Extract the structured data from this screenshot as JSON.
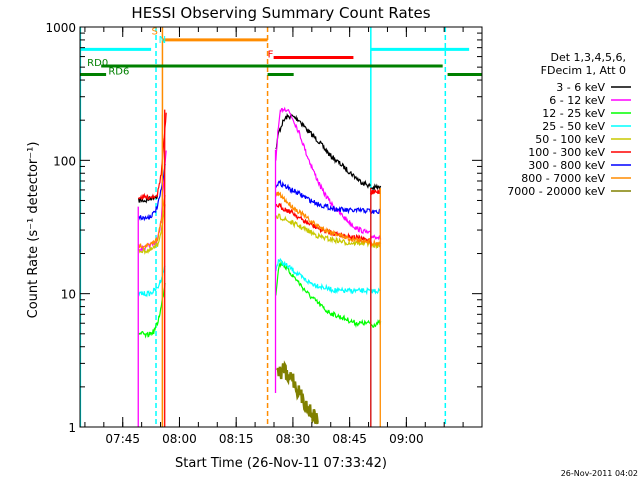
{
  "chart_data": {
    "type": "line",
    "title": "HESSI Observing Summary Count Rates",
    "xlabel": "Start Time (26-Nov-11 07:33:42)",
    "ylabel": "Count Rate (s⁻¹ detector⁻¹)",
    "x_unit": "minutes since 07:33:42 on 26-Nov-2011",
    "xlim": [
      0,
      106.3
    ],
    "ylim": [
      1,
      1000
    ],
    "yscale": "log",
    "grid": false,
    "legend_position": "right",
    "x_ticks": [
      {
        "x": 11.3,
        "label": "07:45"
      },
      {
        "x": 26.3,
        "label": "08:00"
      },
      {
        "x": 41.3,
        "label": "08:15"
      },
      {
        "x": 56.3,
        "label": "08:30"
      },
      {
        "x": 71.3,
        "label": "08:45"
      },
      {
        "x": 86.3,
        "label": "09:00"
      }
    ],
    "y_ticks": [
      {
        "y": 1,
        "label": "1"
      },
      {
        "y": 10,
        "label": "10"
      },
      {
        "y": 100,
        "label": "100"
      },
      {
        "y": 1000,
        "label": "1000"
      }
    ],
    "legend_header": [
      "Det 1,3,4,5,6,",
      "FDecim 1, Att 0"
    ],
    "series": [
      {
        "name": "3 - 6 keV",
        "color": "#000000",
        "segments": [
          {
            "x": [
              15.5,
              16.5,
              17.5,
              18.5,
              19.5,
              20.5
            ],
            "y": [
              50,
              50,
              50,
              52,
              53,
              54
            ]
          },
          {
            "x": [
              51.8,
              52.5,
              53.5,
              54.5,
              56,
              58,
              60,
              63,
              66,
              70,
              74,
              76.8
            ],
            "y": [
              120,
              160,
              190,
              210,
              215,
              200,
              170,
              140,
              110,
              88,
              70,
              64
            ]
          },
          {
            "x": [
              76.8,
              77.5,
              78.5,
              79.5
            ],
            "y": [
              62,
              62,
              63,
              62
            ]
          }
        ]
      },
      {
        "name": "6 - 12 keV",
        "color": "#ff00ff",
        "segments": [
          {
            "x": [
              15.5,
              16.5,
              17.5,
              18.5,
              19.5,
              20.5,
              21.5,
              22,
              22.8
            ],
            "y": [
              22,
              22,
              22,
              23,
              24,
              25,
              36,
              60,
              120
            ]
          },
          {
            "x": [
              51.8,
              52.3,
              53,
              53.8,
              55,
              56.5,
              58,
              60,
              62,
              64,
              67,
              70,
              73,
              76.8
            ],
            "y": [
              100,
              160,
              230,
              245,
              240,
              200,
              160,
              110,
              80,
              60,
              45,
              37,
              31,
              28
            ]
          },
          {
            "x": [
              76.8,
              77.5,
              78.5,
              79.5
            ],
            "y": [
              27,
              27,
              27,
              26
            ]
          }
        ]
      },
      {
        "name": "12 - 25 keV",
        "color": "#00ff00",
        "segments": [
          {
            "x": [
              15.5,
              16.5,
              17.5,
              18.5,
              19.5,
              20.5,
              21.5,
              22.5
            ],
            "y": [
              5,
              5,
              4.8,
              5,
              5.2,
              6,
              8,
              12
            ]
          },
          {
            "x": [
              51.8,
              52.5,
              53.5,
              55,
              57,
              59,
              61,
              63,
              65,
              67,
              70,
              73,
              76.8
            ],
            "y": [
              10,
              16,
              17,
              15,
              13,
              11,
              9.5,
              8.5,
              7.5,
              7,
              6.5,
              6,
              6
            ]
          },
          {
            "x": [
              76.8,
              77.5,
              78.5,
              79.5
            ],
            "y": [
              5.8,
              5.8,
              6,
              6
            ]
          }
        ]
      },
      {
        "name": "25 - 50 keV",
        "color": "#00ffff",
        "segments": [
          {
            "x": [
              15.5,
              16.5,
              17.5,
              18.5,
              19.5,
              20.5,
              21.5,
              22.5
            ],
            "y": [
              10,
              10,
              10,
              10,
              10.5,
              11,
              13,
              16
            ]
          },
          {
            "x": [
              51.8,
              52.5,
              53.5,
              55,
              57,
              59,
              61,
              63,
              65,
              68,
              71,
              74,
              76.8
            ],
            "y": [
              15,
              18,
              17,
              16,
              14.5,
              13,
              12,
              11.5,
              11,
              10.5,
              10.5,
              10.5,
              10.5
            ]
          },
          {
            "x": [
              76.8,
              77.5,
              78.5,
              79.5
            ],
            "y": [
              10.5,
              10.5,
              10.5,
              10.5
            ]
          }
        ]
      },
      {
        "name": "50 - 100 keV",
        "color": "#c8c800",
        "segments": [
          {
            "x": [
              15.5,
              16.5,
              17.5,
              18.5,
              19.5,
              20.5,
              21.5,
              22.5
            ],
            "y": [
              21,
              21,
              21,
              21,
              22,
              23,
              30,
              45
            ]
          },
          {
            "x": [
              51.8,
              52.5,
              53.5,
              55,
              57,
              59,
              61,
              63,
              65,
              68,
              71,
              74,
              76.8
            ],
            "y": [
              36,
              38,
              37,
              35,
              33,
              31,
              29,
              27,
              26,
              25,
              24,
              24,
              24
            ]
          },
          {
            "x": [
              76.8,
              77.5,
              78.5,
              79.5
            ],
            "y": [
              23,
              23,
              23,
              23
            ]
          }
        ]
      },
      {
        "name": "100 - 300 keV",
        "color": "#ff0000",
        "segments": [
          {
            "x": [
              15.5,
              16.5,
              17.5,
              18.5,
              19.5,
              20.5,
              21.5,
              22.3,
              22.8
            ],
            "y": [
              53,
              53,
              53,
              53,
              54,
              56,
              80,
              150,
              220
            ]
          },
          {
            "x": [
              51.8,
              52.5,
              53.5,
              55,
              56.5,
              58,
              60,
              62,
              64,
              66,
              68,
              71,
              74,
              76.8
            ],
            "y": [
              45,
              46,
              44,
              42,
              40,
              37,
              34,
              32,
              30,
              29,
              28,
              27,
              26,
              25
            ]
          },
          {
            "x": [
              76.8,
              77.5,
              78.5,
              79.5
            ],
            "y": [
              58,
              58,
              58,
              58
            ]
          }
        ]
      },
      {
        "name": "300 - 800 keV",
        "color": "#0000ff",
        "segments": [
          {
            "x": [
              15.5,
              16.5,
              17.5,
              18.5,
              19.5,
              20.5,
              21.5,
              22.5
            ],
            "y": [
              38,
              37,
              37,
              38,
              40,
              45,
              60,
              90
            ]
          },
          {
            "x": [
              51.8,
              52.5,
              53.5,
              55,
              57,
              59,
              61,
              63,
              65,
              68,
              71,
              74,
              76.8
            ],
            "y": [
              65,
              68,
              66,
              62,
              58,
              54,
              50,
              47,
              45,
              43,
              42,
              42,
              42
            ]
          },
          {
            "x": [
              76.8,
              77.5,
              78.5,
              79.5
            ],
            "y": [
              41,
              41,
              41,
              41
            ]
          }
        ]
      },
      {
        "name": "800 - 7000 keV",
        "color": "#ff8c00",
        "segments": [
          {
            "x": [
              15.5,
              16.5,
              17.5,
              18.5,
              19.5,
              20.5,
              21.5,
              22.5
            ],
            "y": [
              23,
              23,
              23,
              23,
              24,
              26,
              35,
              55
            ]
          },
          {
            "x": [
              51.8,
              52.5,
              53.5,
              55,
              57,
              59,
              61,
              63,
              65,
              68,
              71,
              74,
              76.8
            ],
            "y": [
              55,
              56,
              53,
              48,
              43,
              39,
              35,
              32,
              30,
              28,
              26,
              25,
              25
            ]
          },
          {
            "x": [
              76.8,
              77.5,
              78.5,
              79.5
            ],
            "y": [
              24,
              24,
              24,
              24
            ]
          }
        ]
      },
      {
        "name": "7000 - 20000 keV",
        "color": "#808000",
        "segments": [
          {
            "x": [
              52.2,
              53,
              54,
              55,
              56,
              57,
              58,
              59,
              60,
              61,
              62,
              63
            ],
            "y": [
              2.8,
              2.5,
              2.8,
              2.2,
              2.5,
              2.0,
              1.8,
              1.6,
              1.4,
              1.3,
              1.2,
              1.1
            ]
          }
        ]
      }
    ],
    "spikes": [
      {
        "x": 15.4,
        "y0": 1,
        "y1": 45,
        "color": "#ff00ff"
      },
      {
        "x": 21.8,
        "y0": 1,
        "y1": 220,
        "color": "#ff8c00"
      },
      {
        "x": 22.4,
        "y0": 1,
        "y1": 240,
        "color": "#ff0000"
      },
      {
        "x": 51.7,
        "y0": 1.8,
        "y1": 120,
        "color": "#ff00ff"
      },
      {
        "x": 76.9,
        "y0": 1,
        "y1": 62,
        "color": "#ff0000"
      },
      {
        "x": 79.4,
        "y0": 1,
        "y1": 62,
        "color": "#ff8c00"
      }
    ],
    "vlines": [
      {
        "x": 0.1,
        "color": "#00ffff",
        "dashed": false
      },
      {
        "x": 20.1,
        "color": "#00ffff",
        "dashed": true
      },
      {
        "x": 21.8,
        "color": "#ff8c00",
        "dashed": false
      },
      {
        "x": 49.6,
        "color": "#ff8c00",
        "dashed": true
      },
      {
        "x": 76.9,
        "color": "#00ffff",
        "dashed": false
      },
      {
        "x": 96.6,
        "color": "#00ffff",
        "dashed": true
      }
    ],
    "status_bars": [
      {
        "color": "#00ffff",
        "y": 680,
        "x0": 0,
        "x1": 18.8
      },
      {
        "color": "#00ffff",
        "y": 680,
        "x0": 77.0,
        "x1": 102.9
      },
      {
        "color": "#ff8c00",
        "y": 800,
        "x0": 21.8,
        "x1": 49.6
      },
      {
        "color": "#ff0000",
        "y": 590,
        "x0": 51.2,
        "x1": 72.3
      },
      {
        "color": "#008000",
        "y": 510,
        "x0": 5.6,
        "x1": 95.9
      },
      {
        "color": "#008000",
        "y": 440,
        "x0": 0,
        "x1": 6.9
      },
      {
        "color": "#008000",
        "y": 440,
        "x0": 49.6,
        "x1": 56.5
      },
      {
        "color": "#008000",
        "y": 440,
        "x0": 97.2,
        "x1": 106.3
      }
    ],
    "annotations": [
      {
        "text": "S",
        "x": 18.9,
        "y": 880,
        "color": "#ff8c00"
      },
      {
        "text": "N",
        "x": 20.8,
        "y": 760,
        "color": "#00ffff"
      },
      {
        "text": "F",
        "x": 49.6,
        "y": 590,
        "color": "#ff0000"
      },
      {
        "text": "RD0",
        "x": 1.9,
        "y": 510,
        "color": "#008000"
      },
      {
        "text": "RD6",
        "x": 7.5,
        "y": 440,
        "color": "#008000"
      }
    ],
    "timestamp": "26-Nov-2011 04:02"
  }
}
